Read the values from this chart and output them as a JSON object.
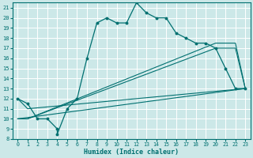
{
  "xlabel": "Humidex (Indice chaleur)",
  "bg_color": "#cce8e8",
  "grid_color": "#aacccc",
  "line_color": "#007070",
  "xlim": [
    -0.5,
    23.5
  ],
  "ylim": [
    8,
    21.5
  ],
  "xticks": [
    0,
    1,
    2,
    3,
    4,
    5,
    6,
    7,
    8,
    9,
    10,
    11,
    12,
    13,
    14,
    15,
    16,
    17,
    18,
    19,
    20,
    21,
    22,
    23
  ],
  "yticks": [
    8,
    9,
    10,
    11,
    12,
    13,
    14,
    15,
    16,
    17,
    18,
    19,
    20,
    21
  ],
  "curve1_x": [
    0,
    1,
    2,
    3,
    4,
    4,
    5,
    6,
    7,
    8,
    9,
    10,
    11,
    12,
    13,
    14,
    15,
    16,
    17,
    18,
    19,
    20,
    21,
    22,
    23
  ],
  "curve1_y": [
    12,
    11.5,
    10,
    10,
    9,
    8.5,
    11,
    12,
    16,
    19.5,
    20,
    19.5,
    19.5,
    21.5,
    20.5,
    20,
    20,
    18.5,
    18,
    17.5,
    17.5,
    17,
    15,
    13,
    13
  ],
  "curve2_x": [
    0,
    1,
    23
  ],
  "curve2_y": [
    12,
    11,
    13
  ],
  "curve3_x": [
    0,
    1,
    20,
    21,
    22,
    23
  ],
  "curve3_y": [
    10,
    10,
    17.5,
    17.5,
    17.5,
    13
  ],
  "curve4_x": [
    0,
    1,
    20,
    21,
    22,
    23
  ],
  "curve4_y": [
    10,
    10,
    17,
    17,
    17,
    13
  ],
  "curve5_x": [
    0,
    23
  ],
  "curve5_y": [
    10,
    13
  ]
}
